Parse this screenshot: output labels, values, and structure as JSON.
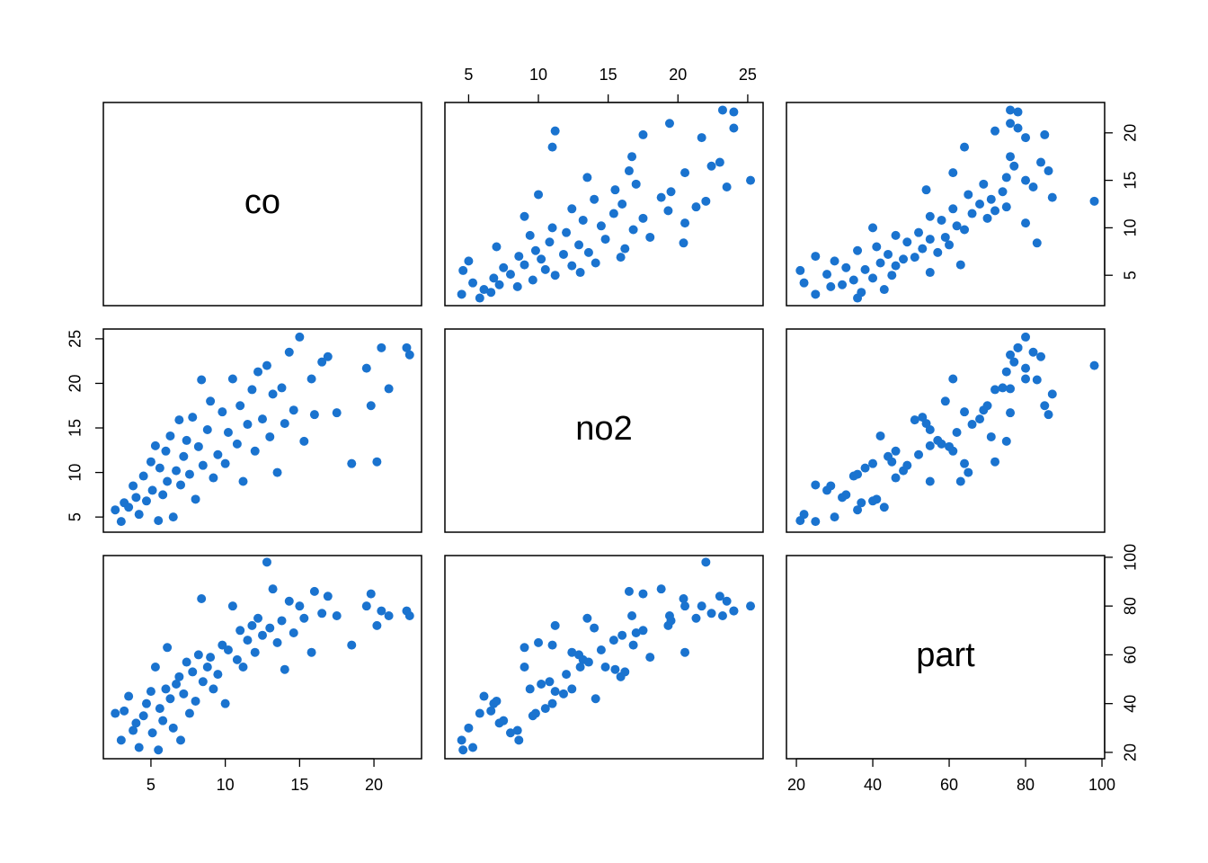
{
  "chart_data": {
    "type": "scatter-matrix",
    "color": "#1a73cf",
    "variables": [
      {
        "name": "co",
        "lim": [
          1.8,
          23.2
        ],
        "ticks": [
          5,
          10,
          15,
          20
        ],
        "values": [
          2.6,
          3.0,
          3.2,
          3.5,
          3.8,
          4.0,
          4.2,
          4.5,
          4.7,
          5.0,
          5.1,
          5.3,
          5.5,
          5.6,
          5.8,
          6.0,
          6.1,
          6.3,
          6.5,
          6.7,
          6.9,
          7.0,
          7.2,
          7.4,
          7.6,
          7.8,
          8.0,
          8.2,
          8.4,
          8.5,
          8.8,
          9.0,
          9.2,
          9.5,
          9.8,
          10.0,
          10.2,
          10.5,
          10.8,
          11.0,
          11.2,
          11.5,
          11.8,
          12.0,
          12.2,
          12.5,
          12.8,
          13.0,
          13.2,
          13.5,
          13.8,
          14.0,
          14.3,
          14.6,
          15.0,
          15.3,
          15.8,
          16.0,
          16.5,
          16.9,
          17.5,
          18.5,
          19.5,
          19.8,
          20.2,
          20.5,
          21.0,
          22.2,
          22.4
        ]
      },
      {
        "name": "no2",
        "lim": [
          3.3,
          26.1
        ],
        "ticks": [
          5,
          10,
          15,
          20,
          25
        ],
        "values": [
          5.8,
          4.5,
          6.6,
          6.1,
          8.5,
          7.2,
          5.3,
          9.6,
          6.8,
          11.2,
          8.0,
          13.0,
          4.6,
          10.5,
          7.5,
          12.4,
          9.0,
          14.1,
          5.0,
          10.2,
          15.9,
          8.6,
          11.8,
          13.6,
          9.8,
          16.2,
          7.0,
          12.9,
          20.4,
          10.8,
          14.8,
          18.0,
          9.4,
          12.0,
          16.8,
          11.0,
          14.5,
          20.5,
          13.2,
          17.5,
          9.0,
          15.4,
          19.3,
          12.4,
          21.3,
          16.0,
          22.0,
          14.0,
          18.8,
          10.0,
          19.5,
          15.5,
          23.5,
          17.0,
          25.2,
          13.5,
          20.5,
          16.5,
          22.4,
          23.0,
          16.7,
          11.0,
          21.7,
          17.5,
          11.2,
          24.0,
          19.4,
          24.0,
          23.2
        ]
      },
      {
        "name": "part",
        "lim": [
          17.4,
          100.7
        ],
        "ticks": [
          20,
          40,
          60,
          80,
          100
        ],
        "values": [
          36,
          25,
          37,
          43,
          29,
          32,
          22,
          35,
          40,
          45,
          28,
          55,
          21,
          38,
          33,
          46,
          63,
          42,
          30,
          48,
          51,
          25,
          44,
          57,
          36,
          53,
          41,
          60,
          83,
          49,
          55,
          59,
          46,
          52,
          64,
          40,
          62,
          80,
          58,
          70,
          55,
          66,
          72,
          61,
          75,
          68,
          98,
          71,
          87,
          65,
          74,
          54,
          82,
          69,
          80,
          75,
          61,
          86,
          77,
          84,
          76,
          64,
          80,
          85,
          72,
          78,
          76,
          78,
          76
        ]
      }
    ]
  }
}
